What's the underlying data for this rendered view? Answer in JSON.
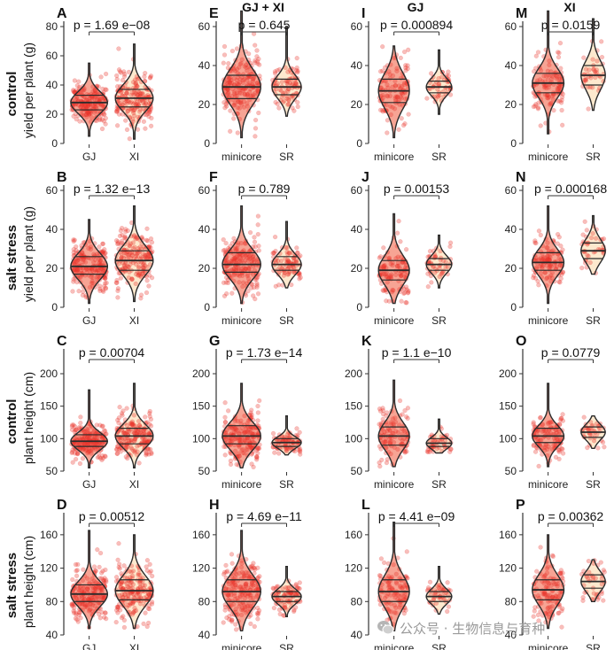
{
  "columns": [
    {
      "id": "col-gj-xi",
      "title": ""
    },
    {
      "id": "col-gjxi",
      "title": "GJ + XI"
    },
    {
      "id": "col-gj",
      "title": "GJ"
    },
    {
      "id": "col-xi",
      "title": "XI"
    }
  ],
  "rows": [
    {
      "condition": "control",
      "ylabel": "yield per plant (g)"
    },
    {
      "condition": "salt stress",
      "ylabel": "yield per plant (g)"
    },
    {
      "condition": "control",
      "ylabel": "plant height (cm)"
    },
    {
      "condition": "salt stress",
      "ylabel": "plant height (cm)"
    }
  ],
  "colors": {
    "point": "#e8342a",
    "violin_fill_left": "#f05a3c",
    "violin_fill_right": "#fde7c9",
    "line": "#2b2b2b"
  },
  "watermark": {
    "text": "公众号 · 生物信息与育种",
    "icon": "wechat-icon"
  },
  "chart_data": [
    {
      "panel": "A",
      "type": "violin",
      "categories": [
        "GJ",
        "XI"
      ],
      "ylim": [
        0,
        80
      ],
      "yticks": [
        0,
        20,
        40,
        60,
        80
      ],
      "pvalue": "p = 1.69 e−08",
      "series": [
        {
          "name": "GJ",
          "median": 28,
          "q1": 23,
          "q3": 33,
          "min": 5,
          "max": 55,
          "n": 200
        },
        {
          "name": "XI",
          "median": 31,
          "q1": 25,
          "q3": 37,
          "min": 3,
          "max": 68,
          "n": 220
        }
      ]
    },
    {
      "panel": "E",
      "type": "violin",
      "categories": [
        "minicore",
        "SR"
      ],
      "ylim": [
        0,
        60
      ],
      "yticks": [
        0,
        20,
        40,
        60
      ],
      "pvalue": "p = 0.645",
      "series": [
        {
          "name": "minicore",
          "median": 29,
          "q1": 23,
          "q3": 35,
          "min": 3,
          "max": 68,
          "n": 230
        },
        {
          "name": "SR",
          "median": 29,
          "q1": 25,
          "q3": 33,
          "min": 14,
          "max": 60,
          "n": 90
        }
      ]
    },
    {
      "panel": "I",
      "type": "violin",
      "categories": [
        "minicore",
        "SR"
      ],
      "ylim": [
        0,
        60
      ],
      "yticks": [
        0,
        20,
        40,
        60
      ],
      "pvalue": "p = 0.000894",
      "series": [
        {
          "name": "minicore",
          "median": 27,
          "q1": 21,
          "q3": 33,
          "min": 3,
          "max": 50,
          "n": 110
        },
        {
          "name": "SR",
          "median": 29,
          "q1": 26,
          "q3": 32,
          "min": 15,
          "max": 48,
          "n": 50
        }
      ]
    },
    {
      "panel": "M",
      "type": "violin",
      "categories": [
        "minicore",
        "SR"
      ],
      "ylim": [
        0,
        60
      ],
      "yticks": [
        0,
        20,
        40,
        60
      ],
      "pvalue": "p = 0.0159",
      "series": [
        {
          "name": "minicore",
          "median": 31,
          "q1": 26,
          "q3": 36,
          "min": 5,
          "max": 68,
          "n": 120
        },
        {
          "name": "SR",
          "median": 35,
          "q1": 30,
          "q3": 40,
          "min": 17,
          "max": 64,
          "n": 40
        }
      ]
    },
    {
      "panel": "B",
      "type": "violin",
      "categories": [
        "GJ",
        "XI"
      ],
      "ylim": [
        0,
        60
      ],
      "yticks": [
        0,
        20,
        40,
        60
      ],
      "pvalue": "p = 1.32 e−13",
      "series": [
        {
          "name": "GJ",
          "median": 21,
          "q1": 17,
          "q3": 26,
          "min": 2,
          "max": 45,
          "n": 200
        },
        {
          "name": "XI",
          "median": 24,
          "q1": 19,
          "q3": 29,
          "min": 3,
          "max": 52,
          "n": 220
        }
      ]
    },
    {
      "panel": "F",
      "type": "violin",
      "categories": [
        "minicore",
        "SR"
      ],
      "ylim": [
        0,
        60
      ],
      "yticks": [
        0,
        20,
        40,
        60
      ],
      "pvalue": "p = 0.789",
      "series": [
        {
          "name": "minicore",
          "median": 22,
          "q1": 18,
          "q3": 28,
          "min": 2,
          "max": 52,
          "n": 230
        },
        {
          "name": "SR",
          "median": 22,
          "q1": 19,
          "q3": 26,
          "min": 10,
          "max": 44,
          "n": 90
        }
      ]
    },
    {
      "panel": "J",
      "type": "violin",
      "categories": [
        "minicore",
        "SR"
      ],
      "ylim": [
        0,
        60
      ],
      "yticks": [
        0,
        20,
        40,
        60
      ],
      "pvalue": "p = 0.00153",
      "series": [
        {
          "name": "minicore",
          "median": 19,
          "q1": 14,
          "q3": 24,
          "min": 2,
          "max": 48,
          "n": 110
        },
        {
          "name": "SR",
          "median": 22,
          "q1": 19,
          "q3": 25,
          "min": 10,
          "max": 37,
          "n": 50
        }
      ]
    },
    {
      "panel": "N",
      "type": "violin",
      "categories": [
        "minicore",
        "SR"
      ],
      "ylim": [
        0,
        60
      ],
      "yticks": [
        0,
        20,
        40,
        60
      ],
      "pvalue": "p = 0.000168",
      "series": [
        {
          "name": "minicore",
          "median": 23,
          "q1": 19,
          "q3": 28,
          "min": 2,
          "max": 52,
          "n": 120
        },
        {
          "name": "SR",
          "median": 29,
          "q1": 25,
          "q3": 33,
          "min": 17,
          "max": 47,
          "n": 40
        }
      ]
    },
    {
      "panel": "C",
      "type": "violin",
      "categories": [
        "GJ",
        "XI"
      ],
      "ylim": [
        50,
        230
      ],
      "yticks": [
        50,
        100,
        150,
        200
      ],
      "pvalue": "p = 0.00704",
      "series": [
        {
          "name": "GJ",
          "median": 96,
          "q1": 88,
          "q3": 106,
          "min": 55,
          "max": 175,
          "n": 200
        },
        {
          "name": "XI",
          "median": 104,
          "q1": 92,
          "q3": 116,
          "min": 55,
          "max": 185,
          "n": 220
        }
      ]
    },
    {
      "panel": "G",
      "type": "violin",
      "categories": [
        "minicore",
        "SR"
      ],
      "ylim": [
        50,
        230
      ],
      "yticks": [
        50,
        100,
        150,
        200
      ],
      "pvalue": "p = 1.73 e−14",
      "series": [
        {
          "name": "minicore",
          "median": 104,
          "q1": 92,
          "q3": 120,
          "min": 55,
          "max": 185,
          "n": 230
        },
        {
          "name": "SR",
          "median": 94,
          "q1": 88,
          "q3": 100,
          "min": 75,
          "max": 135,
          "n": 90
        }
      ]
    },
    {
      "panel": "K",
      "type": "violin",
      "categories": [
        "minicore",
        "SR"
      ],
      "ylim": [
        50,
        230
      ],
      "yticks": [
        50,
        100,
        150,
        200
      ],
      "pvalue": "p = 1.1 e−10",
      "series": [
        {
          "name": "minicore",
          "median": 104,
          "q1": 90,
          "q3": 118,
          "min": 57,
          "max": 190,
          "n": 110
        },
        {
          "name": "SR",
          "median": 93,
          "q1": 88,
          "q3": 100,
          "min": 78,
          "max": 130,
          "n": 50
        }
      ]
    },
    {
      "panel": "O",
      "type": "violin",
      "categories": [
        "minicore",
        "SR"
      ],
      "ylim": [
        50,
        230
      ],
      "yticks": [
        50,
        100,
        150,
        200
      ],
      "pvalue": "p = 0.0779",
      "series": [
        {
          "name": "minicore",
          "median": 104,
          "q1": 94,
          "q3": 116,
          "min": 57,
          "max": 185,
          "n": 120
        },
        {
          "name": "SR",
          "median": 110,
          "q1": 102,
          "q3": 118,
          "min": 85,
          "max": 135,
          "n": 40
        }
      ]
    },
    {
      "panel": "D",
      "type": "violin",
      "categories": [
        "GJ",
        "XI"
      ],
      "ylim": [
        40,
        180
      ],
      "yticks": [
        40,
        80,
        120,
        160
      ],
      "pvalue": "p = 0.00512",
      "series": [
        {
          "name": "GJ",
          "median": 89,
          "q1": 80,
          "q3": 100,
          "min": 48,
          "max": 165,
          "n": 200
        },
        {
          "name": "XI",
          "median": 93,
          "q1": 82,
          "q3": 106,
          "min": 48,
          "max": 160,
          "n": 220
        }
      ]
    },
    {
      "panel": "H",
      "type": "violin",
      "categories": [
        "minicore",
        "SR"
      ],
      "ylim": [
        40,
        180
      ],
      "yticks": [
        40,
        80,
        120,
        160
      ],
      "pvalue": "p = 4.69 e−11",
      "series": [
        {
          "name": "minicore",
          "median": 92,
          "q1": 80,
          "q3": 106,
          "min": 45,
          "max": 165,
          "n": 230
        },
        {
          "name": "SR",
          "median": 86,
          "q1": 80,
          "q3": 92,
          "min": 62,
          "max": 122,
          "n": 90
        }
      ]
    },
    {
      "panel": "L",
      "type": "violin",
      "categories": [
        "minicore",
        "SR"
      ],
      "ylim": [
        40,
        180
      ],
      "yticks": [
        40,
        80,
        120,
        160
      ],
      "pvalue": "p = 4.41 e−09",
      "series": [
        {
          "name": "minicore",
          "median": 92,
          "q1": 80,
          "q3": 106,
          "min": 45,
          "max": 175,
          "n": 110
        },
        {
          "name": "SR",
          "median": 86,
          "q1": 80,
          "q3": 92,
          "min": 65,
          "max": 122,
          "n": 50
        }
      ]
    },
    {
      "panel": "P",
      "type": "violin",
      "categories": [
        "minicore",
        "SR"
      ],
      "ylim": [
        40,
        180
      ],
      "yticks": [
        40,
        80,
        120,
        160
      ],
      "pvalue": "p = 0.00362",
      "series": [
        {
          "name": "minicore",
          "median": 94,
          "q1": 82,
          "q3": 106,
          "min": 48,
          "max": 160,
          "n": 120
        },
        {
          "name": "SR",
          "median": 104,
          "q1": 96,
          "q3": 112,
          "min": 80,
          "max": 130,
          "n": 40
        }
      ]
    }
  ]
}
